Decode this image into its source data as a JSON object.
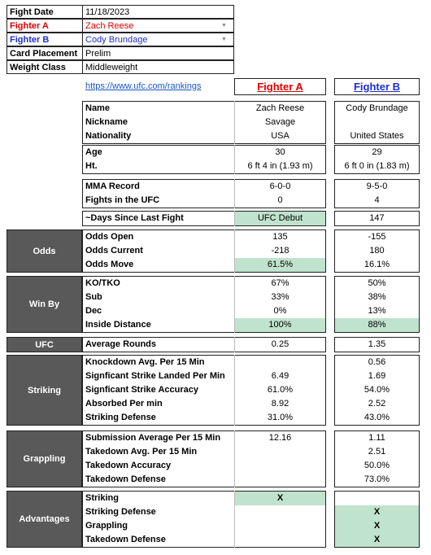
{
  "header": {
    "rows": [
      {
        "label": "Fight Date",
        "value": "11/18/2023"
      },
      {
        "label": "Fighter A",
        "value": "Zach Reese",
        "color": "#e00000"
      },
      {
        "label": "Fighter B",
        "value": "Cody Brundage",
        "color": "#1f2fd0"
      },
      {
        "label": "Card Placement",
        "value": "Prelim"
      },
      {
        "label": "Weight Class",
        "value": "Middleweight"
      }
    ]
  },
  "link": "https://www.ufc.com/rankings",
  "fighter_a_header": "Fighter A",
  "fighter_b_header": "Fighter B",
  "highlight_color": "#bfe3cc",
  "sections": [
    {
      "rows": [
        {
          "label": "Name",
          "a": "Zach Reese",
          "b": "Cody Brundage"
        },
        {
          "label": "Nickname",
          "a": "Savage",
          "b": null
        },
        {
          "label": "Nationality",
          "a": "USA",
          "b": "United States"
        }
      ]
    },
    {
      "rows": [
        {
          "label": "Age",
          "a": "30",
          "b": "29"
        },
        {
          "label": "Ht.",
          "a": "6 ft 4 in (1.93 m)",
          "b": "6 ft 0 in (1.83 m)"
        }
      ]
    },
    {
      "rows": [
        {
          "label": "MMA Record",
          "a": "6-0-0",
          "b": "9-5-0"
        },
        {
          "label": "Fights in the UFC",
          "a": "0",
          "b": "4"
        }
      ]
    },
    {
      "rows": [
        {
          "label": "~Days Since Last Fight",
          "a": "UFC Debut",
          "b": "147",
          "hl": "a"
        }
      ]
    },
    {
      "label": "Odds",
      "rows": [
        {
          "label": "Odds Open",
          "a": "135",
          "b": "-155"
        },
        {
          "label": "Odds Current",
          "a": "-218",
          "b": "180"
        },
        {
          "label": "Odds Move",
          "a": "61.5%",
          "b": "16.1%",
          "hl": "a"
        }
      ]
    },
    {
      "label": "Win By",
      "rows": [
        {
          "label": "KO/TKO",
          "a": "67%",
          "b": "50%"
        },
        {
          "label": "Sub",
          "a": "33%",
          "b": "38%"
        },
        {
          "label": "Dec",
          "a": "0%",
          "b": "13%"
        },
        {
          "label": "Inside Distance",
          "a": "100%",
          "b": "88%",
          "hl": "ab"
        }
      ]
    },
    {
      "label": "UFC",
      "rows": [
        {
          "label": "Average Rounds",
          "a": "0.25",
          "b": "1.35"
        }
      ]
    },
    {
      "label": "Striking",
      "rows": [
        {
          "label": "Knockdown Avg. Per 15 Min",
          "a": null,
          "b": "0.56"
        },
        {
          "label": "Signficant Strike Landed Per Min",
          "a": "6.49",
          "b": "1.69"
        },
        {
          "label": "Signficant Strike Accuracy",
          "a": "61.0%",
          "b": "54.0%"
        },
        {
          "label": "Absorbed Per min",
          "a": "8.92",
          "b": "2.52"
        },
        {
          "label": "Striking Defense",
          "a": "31.0%",
          "b": "43.0%"
        }
      ]
    },
    {
      "label": "Grappling",
      "rows": [
        {
          "label": "Submission Average  Per 15 Min",
          "a": "12.16",
          "b": "1.11"
        },
        {
          "label": "Takedown Avg. Per 15 Min",
          "a": null,
          "b": "2.51"
        },
        {
          "label": "Takedown Accuracy",
          "a": null,
          "b": "50.0%"
        },
        {
          "label": "Takedown Defense",
          "a": null,
          "b": "73.0%"
        }
      ]
    },
    {
      "label": "Advantages",
      "rows": [
        {
          "label": "Striking",
          "a": "X",
          "b": null,
          "hl": "a"
        },
        {
          "label": "Striking Defense",
          "a": null,
          "b": "X",
          "hl": "b"
        },
        {
          "label": "Grappling",
          "a": null,
          "b": "X",
          "hl": "b"
        },
        {
          "label": "Takedown Defense",
          "a": null,
          "b": "X",
          "hl": "b"
        }
      ]
    }
  ]
}
